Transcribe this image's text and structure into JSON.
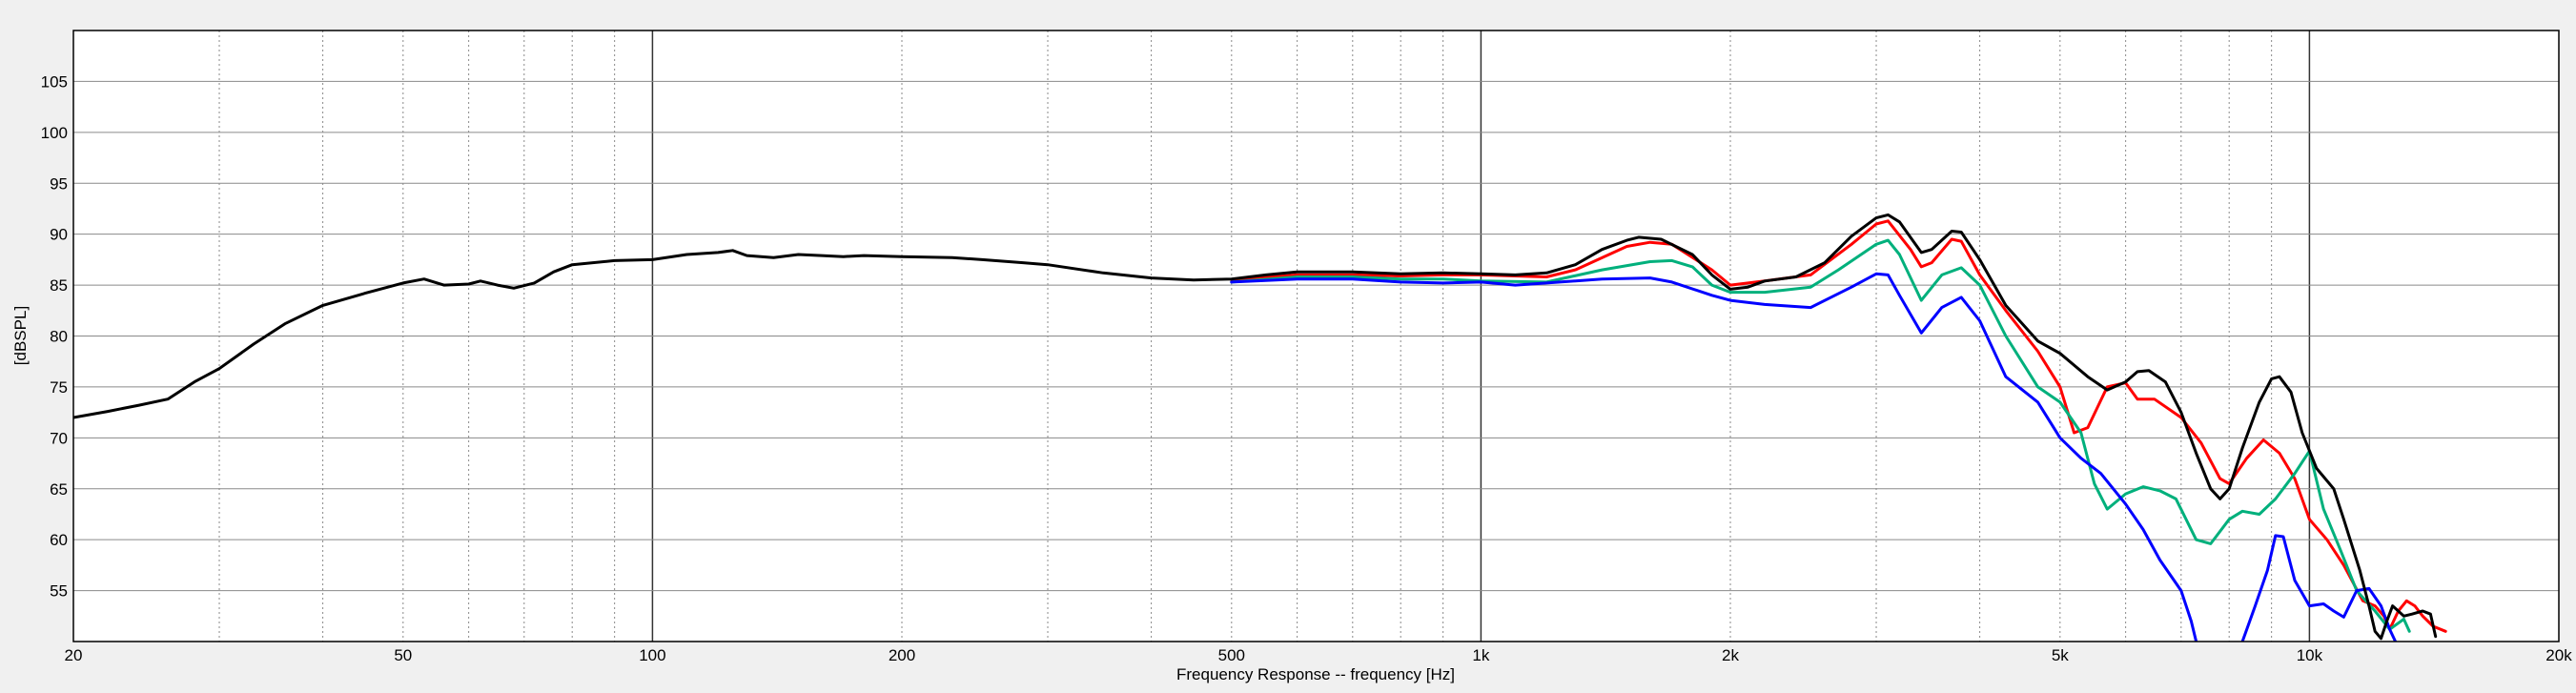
{
  "chart_data": {
    "type": "line",
    "xlabel": "Frequency Response -- frequency [Hz]",
    "ylabel": "[dBSPL]",
    "x_scale": "log",
    "xlim": [
      20,
      20000
    ],
    "ylim": [
      50,
      110
    ],
    "grid": true,
    "x_ticks": [
      {
        "value": 20,
        "label": "20"
      },
      {
        "value": 50,
        "label": "50"
      },
      {
        "value": 100,
        "label": "100"
      },
      {
        "value": 200,
        "label": "200"
      },
      {
        "value": 500,
        "label": "500"
      },
      {
        "value": 1000,
        "label": "1k"
      },
      {
        "value": 2000,
        "label": "2k"
      },
      {
        "value": 5000,
        "label": "5k"
      },
      {
        "value": 10000,
        "label": "10k"
      },
      {
        "value": 20000,
        "label": "20k"
      }
    ],
    "y_ticks": [
      55,
      60,
      65,
      70,
      75,
      80,
      85,
      90,
      95,
      100,
      105
    ],
    "series": [
      {
        "color": "#000000",
        "points": [
          [
            20,
            72
          ],
          [
            22,
            72.6
          ],
          [
            24,
            73.2
          ],
          [
            26,
            73.8
          ],
          [
            28,
            75.5
          ],
          [
            30,
            76.8
          ],
          [
            33,
            79.2
          ],
          [
            36,
            81.2
          ],
          [
            40,
            83
          ],
          [
            45,
            84.2
          ],
          [
            50,
            85.2
          ],
          [
            53,
            85.6
          ],
          [
            56,
            85
          ],
          [
            60,
            85.1
          ],
          [
            62,
            85.4
          ],
          [
            65,
            85
          ],
          [
            68,
            84.7
          ],
          [
            72,
            85.2
          ],
          [
            76,
            86.3
          ],
          [
            80,
            87
          ],
          [
            90,
            87.4
          ],
          [
            100,
            87.5
          ],
          [
            110,
            88
          ],
          [
            120,
            88.2
          ],
          [
            125,
            88.4
          ],
          [
            130,
            87.9
          ],
          [
            140,
            87.7
          ],
          [
            150,
            88
          ],
          [
            160,
            87.9
          ],
          [
            170,
            87.8
          ],
          [
            180,
            87.9
          ],
          [
            200,
            87.8
          ],
          [
            230,
            87.7
          ],
          [
            250,
            87.5
          ],
          [
            280,
            87.2
          ],
          [
            300,
            87
          ],
          [
            350,
            86.2
          ],
          [
            400,
            85.7
          ],
          [
            450,
            85.5
          ],
          [
            500,
            85.6
          ],
          [
            550,
            86
          ],
          [
            600,
            86.3
          ],
          [
            700,
            86.3
          ],
          [
            800,
            86.1
          ],
          [
            900,
            86.2
          ],
          [
            1000,
            86.1
          ],
          [
            1100,
            86
          ],
          [
            1200,
            86.2
          ],
          [
            1300,
            87
          ],
          [
            1400,
            88.5
          ],
          [
            1500,
            89.4
          ],
          [
            1550,
            89.7
          ],
          [
            1650,
            89.5
          ],
          [
            1800,
            88
          ],
          [
            1900,
            86
          ],
          [
            2000,
            84.6
          ],
          [
            2100,
            84.8
          ],
          [
            2200,
            85.4
          ],
          [
            2400,
            85.8
          ],
          [
            2600,
            87.2
          ],
          [
            2800,
            89.8
          ],
          [
            3000,
            91.6
          ],
          [
            3100,
            91.9
          ],
          [
            3200,
            91.2
          ],
          [
            3400,
            88.2
          ],
          [
            3500,
            88.5
          ],
          [
            3700,
            90.3
          ],
          [
            3800,
            90.2
          ],
          [
            4000,
            87.5
          ],
          [
            4300,
            83
          ],
          [
            4700,
            79.5
          ],
          [
            5000,
            78.3
          ],
          [
            5400,
            76
          ],
          [
            5700,
            74.7
          ],
          [
            6000,
            75.5
          ],
          [
            6200,
            76.5
          ],
          [
            6400,
            76.6
          ],
          [
            6700,
            75.5
          ],
          [
            7000,
            72.5
          ],
          [
            7300,
            68.5
          ],
          [
            7600,
            65
          ],
          [
            7800,
            64
          ],
          [
            8000,
            65
          ],
          [
            8300,
            69
          ],
          [
            8700,
            73.5
          ],
          [
            9000,
            75.8
          ],
          [
            9200,
            76
          ],
          [
            9500,
            74.5
          ],
          [
            9800,
            70.5
          ],
          [
            10200,
            67
          ],
          [
            10700,
            65
          ],
          [
            11000,
            62
          ],
          [
            11500,
            57
          ],
          [
            11800,
            53.5
          ],
          [
            12000,
            51
          ],
          [
            12200,
            50.3
          ],
          [
            12400,
            52
          ],
          [
            12600,
            53.5
          ],
          [
            12800,
            53
          ],
          [
            13000,
            52.5
          ],
          [
            13300,
            52.7
          ],
          [
            13700,
            53
          ],
          [
            14000,
            52.7
          ],
          [
            14200,
            50.5
          ]
        ]
      },
      {
        "color": "#ff0000",
        "points": [
          [
            500,
            85.5
          ],
          [
            600,
            86
          ],
          [
            700,
            86
          ],
          [
            800,
            85.9
          ],
          [
            900,
            86
          ],
          [
            1000,
            86
          ],
          [
            1100,
            85.9
          ],
          [
            1200,
            85.8
          ],
          [
            1300,
            86.5
          ],
          [
            1500,
            88.8
          ],
          [
            1600,
            89.2
          ],
          [
            1700,
            89
          ],
          [
            1900,
            86.5
          ],
          [
            2000,
            85
          ],
          [
            2200,
            85.4
          ],
          [
            2500,
            86
          ],
          [
            2800,
            89
          ],
          [
            3000,
            91
          ],
          [
            3100,
            91.3
          ],
          [
            3300,
            88.5
          ],
          [
            3400,
            86.8
          ],
          [
            3500,
            87.2
          ],
          [
            3700,
            89.5
          ],
          [
            3800,
            89.3
          ],
          [
            4000,
            86
          ],
          [
            4300,
            82.5
          ],
          [
            4700,
            78.5
          ],
          [
            5000,
            75
          ],
          [
            5200,
            70.5
          ],
          [
            5400,
            71
          ],
          [
            5700,
            75
          ],
          [
            6000,
            75.4
          ],
          [
            6200,
            73.8
          ],
          [
            6500,
            73.8
          ],
          [
            7000,
            72
          ],
          [
            7400,
            69.5
          ],
          [
            7800,
            66
          ],
          [
            8000,
            65.5
          ],
          [
            8400,
            68
          ],
          [
            8800,
            69.8
          ],
          [
            9200,
            68.5
          ],
          [
            9600,
            66
          ],
          [
            10000,
            62
          ],
          [
            10500,
            60
          ],
          [
            11000,
            57.5
          ],
          [
            11600,
            54
          ],
          [
            12000,
            53.5
          ],
          [
            12300,
            52.5
          ],
          [
            12500,
            51.2
          ],
          [
            12800,
            53
          ],
          [
            13100,
            54
          ],
          [
            13400,
            53.5
          ],
          [
            13700,
            52.5
          ],
          [
            14100,
            51.5
          ],
          [
            14600,
            51
          ]
        ]
      },
      {
        "color": "#00b07c",
        "points": [
          [
            500,
            85.3
          ],
          [
            600,
            85.8
          ],
          [
            700,
            85.8
          ],
          [
            800,
            85.6
          ],
          [
            900,
            85.6
          ],
          [
            1000,
            85.4
          ],
          [
            1200,
            85.3
          ],
          [
            1400,
            86.5
          ],
          [
            1600,
            87.3
          ],
          [
            1700,
            87.4
          ],
          [
            1800,
            86.8
          ],
          [
            1900,
            85
          ],
          [
            2000,
            84.3
          ],
          [
            2200,
            84.3
          ],
          [
            2500,
            84.8
          ],
          [
            2700,
            86.5
          ],
          [
            3000,
            89
          ],
          [
            3100,
            89.4
          ],
          [
            3200,
            88
          ],
          [
            3400,
            83.5
          ],
          [
            3600,
            86
          ],
          [
            3800,
            86.7
          ],
          [
            4000,
            85
          ],
          [
            4300,
            80
          ],
          [
            4700,
            75
          ],
          [
            5000,
            73.5
          ],
          [
            5300,
            70.5
          ],
          [
            5500,
            65.5
          ],
          [
            5700,
            63
          ],
          [
            6000,
            64.5
          ],
          [
            6300,
            65.2
          ],
          [
            6600,
            64.8
          ],
          [
            6900,
            64
          ],
          [
            7300,
            60
          ],
          [
            7600,
            59.6
          ],
          [
            8000,
            62
          ],
          [
            8300,
            62.8
          ],
          [
            8700,
            62.5
          ],
          [
            9100,
            64
          ],
          [
            9600,
            66.5
          ],
          [
            10000,
            68.7
          ],
          [
            10400,
            63
          ],
          [
            10900,
            59
          ],
          [
            11400,
            55
          ],
          [
            12000,
            53
          ],
          [
            12500,
            51.2
          ],
          [
            13000,
            52.2
          ],
          [
            13200,
            51
          ]
        ]
      },
      {
        "color": "#0000ff",
        "points": [
          [
            500,
            85.3
          ],
          [
            600,
            85.6
          ],
          [
            700,
            85.6
          ],
          [
            800,
            85.3
          ],
          [
            900,
            85.2
          ],
          [
            1000,
            85.3
          ],
          [
            1100,
            85
          ],
          [
            1200,
            85.2
          ],
          [
            1400,
            85.6
          ],
          [
            1600,
            85.7
          ],
          [
            1700,
            85.3
          ],
          [
            1900,
            84
          ],
          [
            2000,
            83.5
          ],
          [
            2200,
            83.1
          ],
          [
            2500,
            82.8
          ],
          [
            2800,
            84.8
          ],
          [
            3000,
            86.1
          ],
          [
            3100,
            86
          ],
          [
            3200,
            84
          ],
          [
            3400,
            80.3
          ],
          [
            3600,
            82.8
          ],
          [
            3800,
            83.8
          ],
          [
            4000,
            81.5
          ],
          [
            4300,
            76
          ],
          [
            4700,
            73.5
          ],
          [
            5000,
            70
          ],
          [
            5300,
            68
          ],
          [
            5600,
            66.5
          ],
          [
            6000,
            63.5
          ],
          [
            6300,
            61
          ],
          [
            6600,
            58
          ],
          [
            7000,
            55
          ],
          [
            7200,
            52
          ],
          [
            7300,
            50
          ],
          [
            null,
            null
          ],
          [
            8300,
            50
          ],
          [
            8600,
            53.5
          ],
          [
            8900,
            57
          ],
          [
            9100,
            60.4
          ],
          [
            9300,
            60.3
          ],
          [
            9600,
            56
          ],
          [
            10000,
            53.5
          ],
          [
            10400,
            53.7
          ],
          [
            10700,
            53
          ],
          [
            11000,
            52.4
          ],
          [
            11400,
            55
          ],
          [
            11800,
            55.2
          ],
          [
            12200,
            53.5
          ],
          [
            12500,
            51.2
          ],
          [
            12700,
            50
          ]
        ]
      }
    ]
  }
}
